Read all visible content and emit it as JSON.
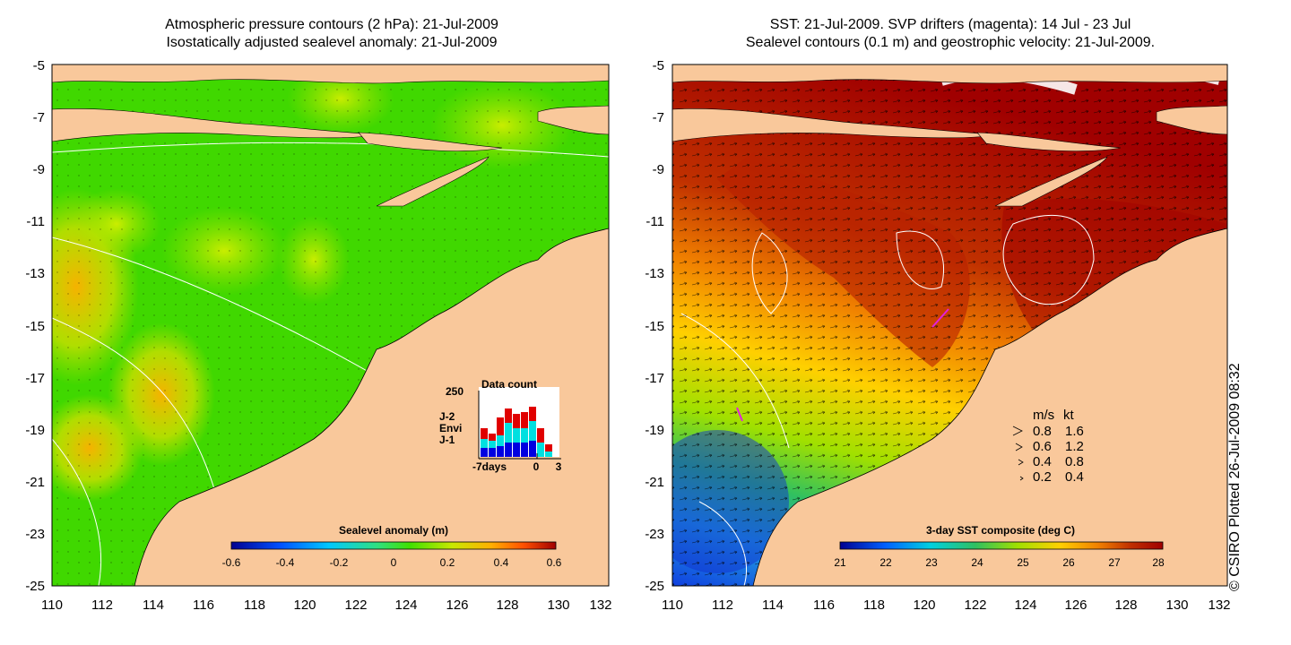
{
  "left_panel": {
    "title_line1": "Atmospheric pressure contours (2 hPa): 21-Jul-2009",
    "title_line2": "Isostatically adjusted sealevel anomaly: 21-Jul-2009",
    "colorbar": {
      "label": "Sealevel anomaly (m)",
      "ticks": [
        "-0.6",
        "-0.4",
        "-0.2",
        "0",
        "0.2",
        "0.4",
        "0.6"
      ]
    },
    "data_count": {
      "title": "Data count",
      "ymax_label": "250",
      "x_labels": [
        "-7days",
        "0",
        "3"
      ],
      "legend": [
        {
          "label": "J-2",
          "color": "#e00000"
        },
        {
          "label": "Envi",
          "color": "#00e0e0"
        },
        {
          "label": "J-1",
          "color": "#0000e0"
        }
      ]
    }
  },
  "right_panel": {
    "title_line1": "SST: 21-Jul-2009. SVP drifters (magenta): 14 Jul - 23 Jul",
    "title_line2": "Sealevel contours (0.1 m) and geostrophic velocity: 21-Jul-2009.",
    "colorbar": {
      "label": "3-day SST composite (deg C)",
      "ticks": [
        "21",
        "22",
        "23",
        "24",
        "25",
        "26",
        "27",
        "28"
      ]
    },
    "velocity_legend": {
      "header": [
        "m/s",
        "kt"
      ],
      "rows": [
        [
          "0.8",
          "1.6"
        ],
        [
          "0.6",
          "1.2"
        ],
        [
          "0.4",
          "0.8"
        ],
        [
          "0.2",
          "0.4"
        ]
      ]
    }
  },
  "axes": {
    "y_labels": [
      "-5",
      "-7",
      "-9",
      "-11",
      "-13",
      "-15",
      "-17",
      "-19",
      "-21",
      "-23",
      "-25"
    ],
    "x_labels": [
      "110",
      "112",
      "114",
      "116",
      "118",
      "120",
      "122",
      "124",
      "126",
      "128",
      "130",
      "132"
    ]
  },
  "credit": "© CSIRO Plotted 26-Jul-2009 08:32",
  "colors": {
    "land": "#f9c89b",
    "sla_ramp": [
      "#000090",
      "#0050ff",
      "#00c8ff",
      "#30e080",
      "#40e000",
      "#c8e800",
      "#ffb000",
      "#ff5000",
      "#a00000"
    ],
    "sst_ramp": [
      "#000090",
      "#0060ff",
      "#00d0e0",
      "#30c060",
      "#a0e000",
      "#ffd000",
      "#f08000",
      "#c03000",
      "#a00000"
    ]
  }
}
